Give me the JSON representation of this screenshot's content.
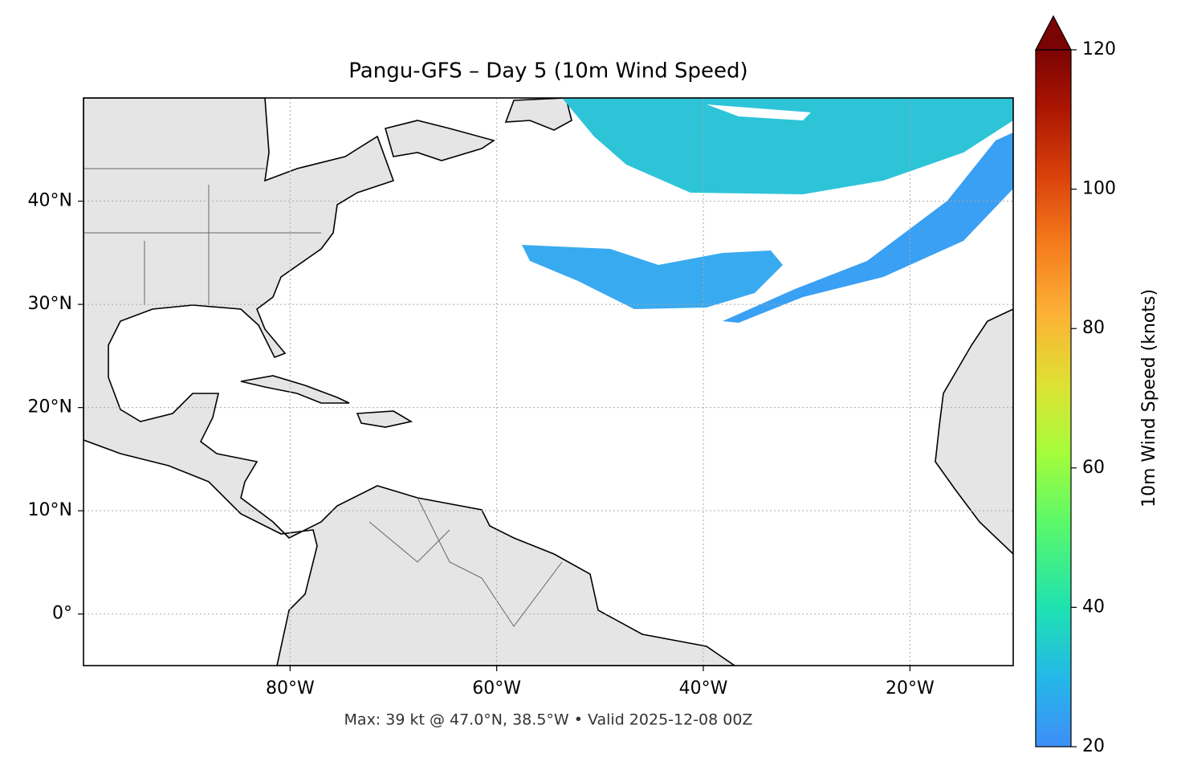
{
  "chart_data": {
    "type": "map",
    "title": "Pangu-GFS – Day 5 (10m Wind Speed)",
    "footnote": "Max: 39 kt @ 47.0°N, 38.5°W • Valid 2025-12-08 00Z",
    "xlim": [
      -100,
      -10
    ],
    "ylim": [
      -5,
      50
    ],
    "xticks": [
      {
        "value": -80,
        "label": "80°W"
      },
      {
        "value": -60,
        "label": "60°W"
      },
      {
        "value": -40,
        "label": "40°W"
      },
      {
        "value": -20,
        "label": "20°W"
      }
    ],
    "yticks": [
      {
        "value": 0,
        "label": "0°"
      },
      {
        "value": 10,
        "label": "10°N"
      },
      {
        "value": 20,
        "label": "20°N"
      },
      {
        "value": 30,
        "label": "30°N"
      },
      {
        "value": 40,
        "label": "40°N"
      }
    ],
    "grid": true,
    "colorbar": {
      "label": "10m Wind Speed (knots)",
      "lim": [
        20,
        120
      ],
      "ticks": [
        20,
        40,
        60,
        80,
        100,
        120
      ]
    }
  }
}
